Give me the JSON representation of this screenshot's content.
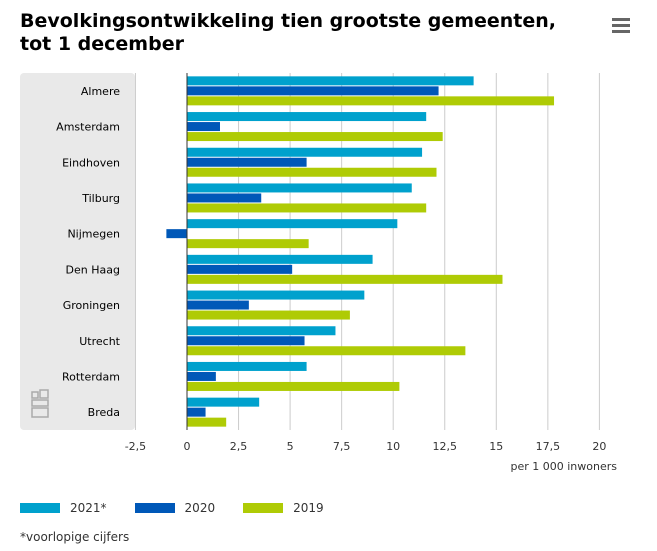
{
  "header": {
    "title": "Bevolkingsontwikkeling tien grootste gemeenten, tot 1 december",
    "menu_icon": "hamburger-menu-icon"
  },
  "colors": {
    "series_2021": "#00a1cd",
    "series_2020": "#0058b8",
    "series_2019": "#afcb05",
    "category_band": "#e9e9e9",
    "grid": "#cccccc",
    "axis": "#333333",
    "logo": "#aaaaaa"
  },
  "logo": {
    "text": "cbs",
    "icon": "cbs-logo-icon"
  },
  "chart_data": {
    "type": "bar",
    "orientation": "horizontal",
    "title": "Bevolkingsontwikkeling tien grootste gemeenten, tot 1 december",
    "categories": [
      "Almere",
      "Amsterdam",
      "Eindhoven",
      "Tilburg",
      "Nijmegen",
      "Den Haag",
      "Groningen",
      "Utrecht",
      "Rotterdam",
      "Breda"
    ],
    "series": [
      {
        "name": "2021*",
        "values": [
          13.9,
          11.6,
          11.4,
          10.9,
          10.2,
          9.0,
          8.6,
          7.2,
          5.8,
          3.5
        ]
      },
      {
        "name": "2020",
        "values": [
          12.2,
          1.6,
          5.8,
          3.6,
          -1.0,
          5.1,
          3.0,
          5.7,
          1.4,
          0.9
        ]
      },
      {
        "name": "2019",
        "values": [
          17.8,
          12.4,
          12.1,
          11.6,
          5.9,
          15.3,
          7.9,
          13.5,
          10.3,
          1.9
        ]
      }
    ],
    "xticks": [
      "-2,5",
      "0",
      "2,5",
      "5",
      "7,5",
      "10",
      "12,5",
      "15",
      "17,5",
      "20"
    ],
    "xtick_values": [
      -2.5,
      0,
      2.5,
      5,
      7.5,
      10,
      12.5,
      15,
      17.5,
      20
    ],
    "xlim": [
      -2.5,
      20
    ],
    "xlabel": "per 1 000 inwoners",
    "ylabel": "",
    "grid": true,
    "legend_position": "bottom-left"
  },
  "footnote": "*voorlopige cijfers"
}
